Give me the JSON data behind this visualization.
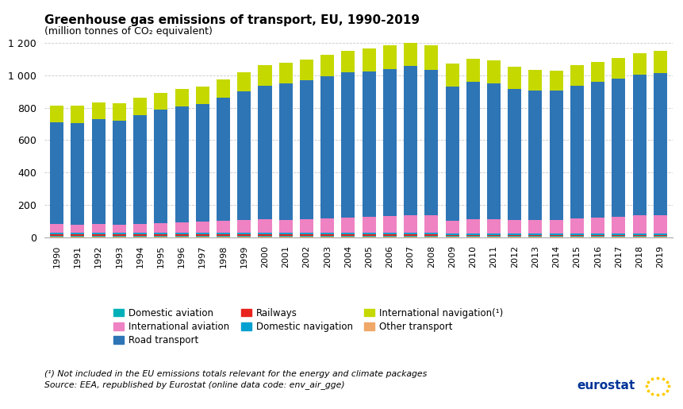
{
  "title": "Greenhouse gas emissions of transport, EU, 1990-2019",
  "subtitle": "(million tonnes of CO₂ equivalent)",
  "years": [
    1990,
    1991,
    1992,
    1993,
    1994,
    1995,
    1996,
    1997,
    1998,
    1999,
    2000,
    2001,
    2002,
    2003,
    2004,
    2005,
    2006,
    2007,
    2008,
    2009,
    2010,
    2011,
    2012,
    2013,
    2014,
    2015,
    2016,
    2017,
    2018,
    2019
  ],
  "domestic_aviation": [
    5,
    5,
    5,
    5,
    5,
    5,
    5,
    5,
    5,
    5,
    5,
    5,
    5,
    5,
    5,
    5,
    5,
    5,
    5,
    4,
    4,
    4,
    4,
    4,
    4,
    4,
    4,
    4,
    5,
    5
  ],
  "international_aviation": [
    52,
    51,
    53,
    51,
    56,
    60,
    65,
    68,
    74,
    78,
    81,
    79,
    82,
    86,
    92,
    97,
    103,
    109,
    106,
    76,
    87,
    88,
    84,
    84,
    85,
    92,
    97,
    103,
    110,
    111
  ],
  "road_transport": [
    629,
    626,
    648,
    643,
    671,
    698,
    717,
    728,
    758,
    793,
    827,
    843,
    860,
    879,
    896,
    898,
    905,
    922,
    898,
    832,
    849,
    837,
    810,
    800,
    797,
    820,
    839,
    855,
    870,
    880
  ],
  "railways": [
    8,
    7,
    7,
    7,
    7,
    7,
    7,
    7,
    7,
    7,
    7,
    7,
    7,
    7,
    7,
    7,
    7,
    7,
    7,
    6,
    6,
    6,
    6,
    5,
    5,
    5,
    5,
    5,
    5,
    5
  ],
  "domestic_navigation": [
    12,
    12,
    12,
    12,
    12,
    12,
    12,
    12,
    12,
    12,
    13,
    13,
    13,
    13,
    13,
    13,
    13,
    13,
    12,
    11,
    11,
    11,
    10,
    10,
    10,
    10,
    10,
    10,
    11,
    11
  ],
  "international_navigation": [
    105,
    107,
    105,
    108,
    107,
    107,
    104,
    108,
    113,
    120,
    126,
    128,
    128,
    131,
    136,
    140,
    150,
    162,
    155,
    139,
    141,
    140,
    135,
    128,
    124,
    128,
    122,
    127,
    130,
    135
  ],
  "other_transport": [
    4,
    4,
    4,
    4,
    4,
    4,
    4,
    4,
    4,
    4,
    4,
    4,
    4,
    4,
    4,
    4,
    4,
    4,
    4,
    4,
    4,
    4,
    4,
    4,
    4,
    4,
    4,
    4,
    4,
    4
  ],
  "colors": {
    "domestic_aviation": "#00b0b9",
    "international_aviation": "#ee82c3",
    "road_transport": "#2e75b6",
    "railways": "#e8241c",
    "domestic_navigation": "#00a0d0",
    "international_navigation": "#c5d900",
    "other_transport": "#f0a868"
  },
  "ylim": [
    0,
    1200
  ],
  "yticks": [
    0,
    200,
    400,
    600,
    800,
    1000,
    1200
  ],
  "ytick_labels": [
    "0",
    "200",
    "400",
    "600",
    "800",
    "1 000",
    "1 200"
  ],
  "footnote1": "(¹) Not included in the EU emissions totals relevant for the energy and climate packages",
  "footnote2": "Source: EEA, republished by Eurostat (online data code: env_air_gge)",
  "background_color": "#ffffff",
  "grid_color": "#c8c8c8",
  "legend_order": [
    "domestic_aviation",
    "international_aviation",
    "road_transport",
    "railways",
    "domestic_navigation",
    "international_navigation",
    "other_transport"
  ],
  "legend_labels": [
    "Domestic aviation",
    "International aviation",
    "Road transport",
    "Railways",
    "Domestic navigation",
    "International navigation(¹)",
    "Other transport"
  ]
}
